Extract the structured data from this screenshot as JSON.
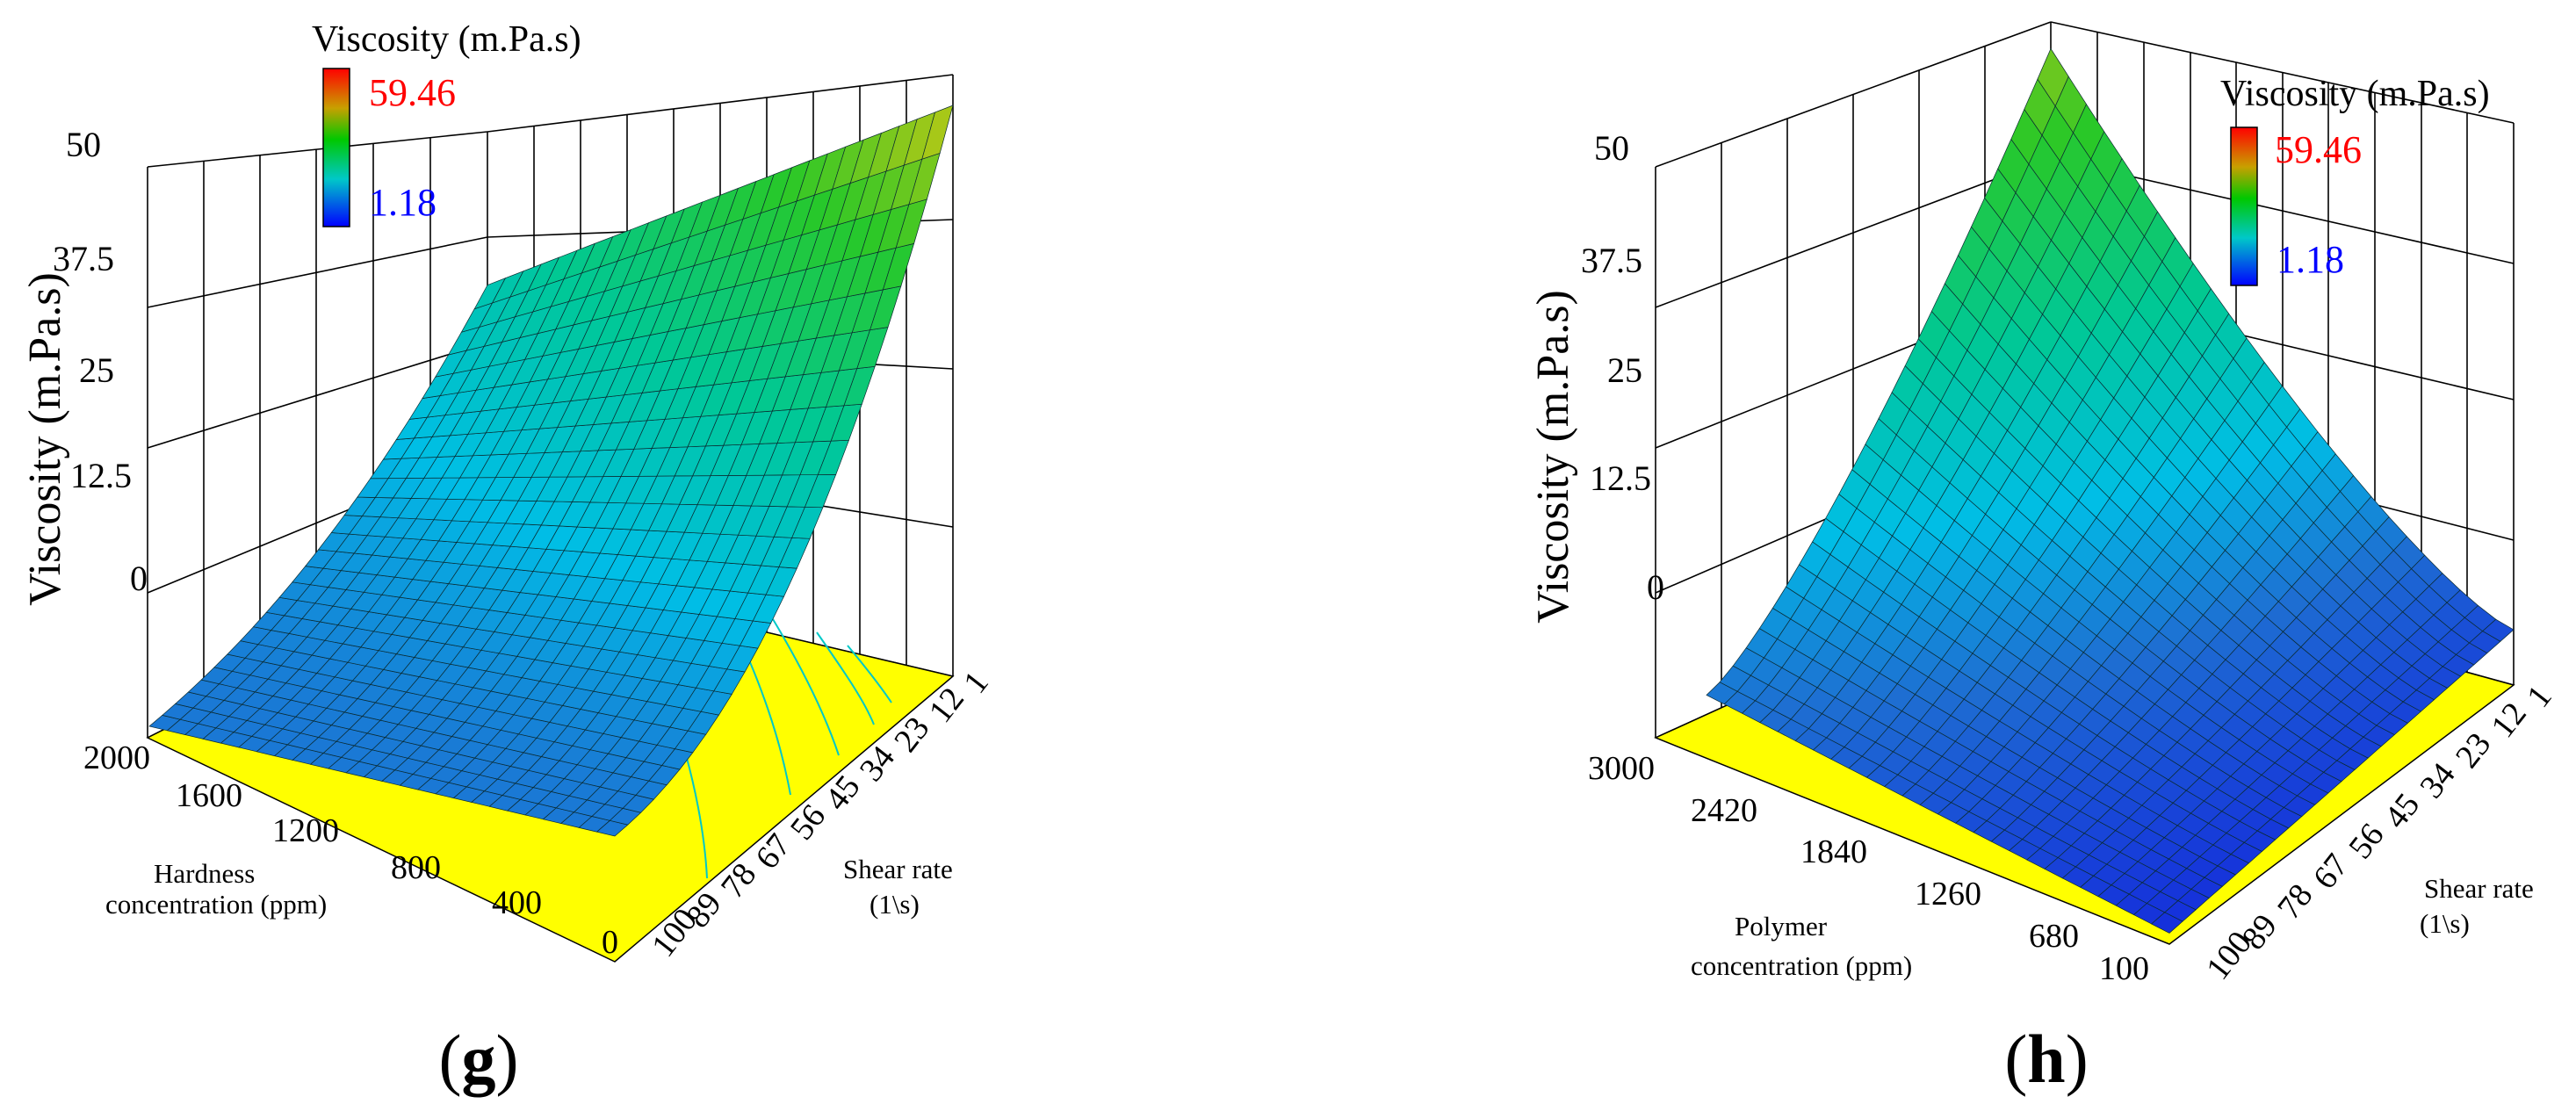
{
  "chart_data": [
    {
      "type": "surface3d",
      "panel_label": "g",
      "zlabel": "Viscosity (m.Pa.s)",
      "zticks": [
        "0",
        "12.5",
        "25",
        "37.5",
        "50"
      ],
      "zlim": [
        0,
        50
      ],
      "x_axis": {
        "label_lines": [
          "Hardness",
          "concentration (ppm)"
        ],
        "ticks": [
          "2000",
          "1600",
          "1200",
          "800",
          "400",
          "0"
        ]
      },
      "y_axis": {
        "label_lines": [
          "Shear rate",
          "(1\\s)"
        ],
        "ticks": [
          "100",
          "89",
          "78",
          "67",
          "56",
          "45",
          "34",
          "23",
          "12",
          "1"
        ]
      },
      "legend": {
        "title": "Viscosity (m.Pa.s)",
        "max": "59.46",
        "min": "1.18",
        "max_color": "#ff0000",
        "min_color": "#0000ff"
      },
      "surface_corners": {
        "hardness_2000_shear_1": 50,
        "hardness_0_shear_1": 50,
        "hardness_2000_shear_100": 10,
        "hardness_0_shear_100": 10
      }
    },
    {
      "type": "surface3d",
      "panel_label": "h",
      "zlabel": "Viscosity (m.Pa.s)",
      "zticks": [
        "0",
        "12.5",
        "25",
        "37.5",
        "50"
      ],
      "zlim": [
        0,
        50
      ],
      "x_axis": {
        "label_lines": [
          "Polymer",
          "concentration (ppm)"
        ],
        "ticks": [
          "3000",
          "2420",
          "1840",
          "1260",
          "680",
          "100"
        ]
      },
      "y_axis": {
        "label_lines": [
          "Shear rate",
          "(1\\s)"
        ],
        "ticks": [
          "100",
          "89",
          "78",
          "67",
          "56",
          "45",
          "34",
          "23",
          "12",
          "1"
        ]
      },
      "legend": {
        "title": "Viscosity (m.Pa.s)",
        "max": "59.46",
        "min": "1.18",
        "max_color": "#ff0000",
        "min_color": "#0000ff"
      },
      "surface_corners": {
        "polymer_3000_shear_1": 52,
        "polymer_100_shear_1": 5,
        "polymer_3000_shear_100": 12,
        "polymer_100_shear_100": 1
      }
    }
  ]
}
